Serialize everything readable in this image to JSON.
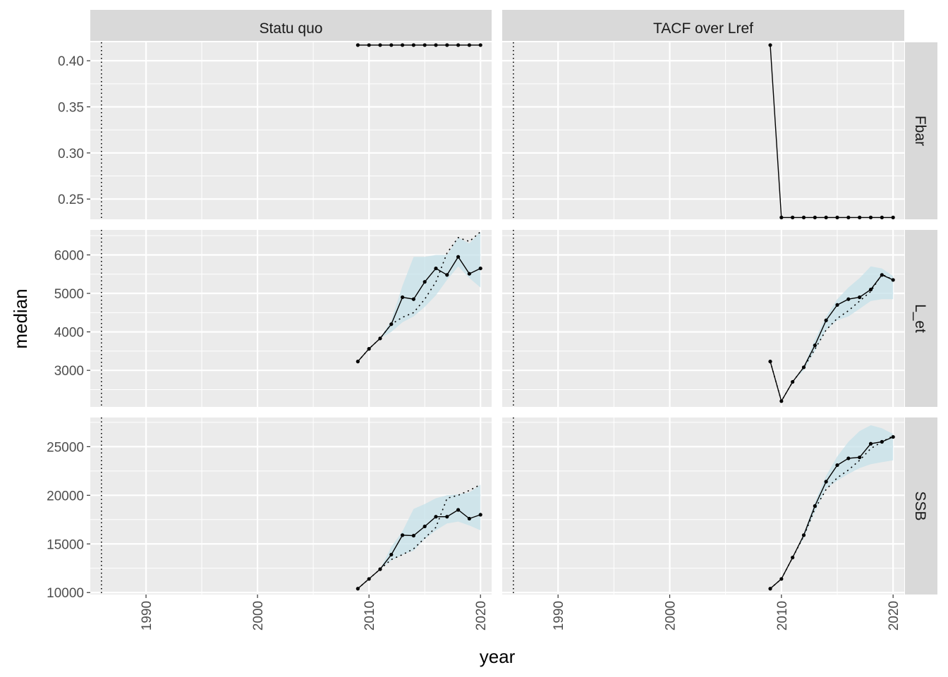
{
  "chart_data": {
    "type": "line",
    "xlabel": "year",
    "ylabel": "median",
    "x_ticks": [
      1990,
      2000,
      2010,
      2020
    ],
    "xlim": [
      1985,
      2021
    ],
    "reference_line_x": 1986,
    "columns": [
      "Statu quo",
      "TACF over Lref"
    ],
    "rows": [
      "Fbar",
      "L_et",
      "SSB"
    ],
    "years": [
      2009,
      2010,
      2011,
      2012,
      2013,
      2014,
      2015,
      2016,
      2017,
      2018,
      2019,
      2020
    ],
    "colors": {
      "panel_bg": "#ebebeb",
      "strip_bg": "#d9d9d9",
      "grid": "#ffffff",
      "line": "#000000",
      "ribbon": "#c6e2ea"
    },
    "panels": {
      "Fbar": {
        "ylim": [
          0.228,
          0.42
        ],
        "y_ticks": [
          0.25,
          0.3,
          0.35,
          0.4
        ],
        "y_tick_labels": [
          "0.25",
          "0.30",
          "0.35",
          "0.40"
        ],
        "Statu quo": {
          "median": [
            0.417,
            0.417,
            0.417,
            0.417,
            0.417,
            0.417,
            0.417,
            0.417,
            0.417,
            0.417,
            0.417,
            0.417
          ],
          "dotted": [],
          "ribbon_low": [],
          "ribbon_high": []
        },
        "TACF over Lref": {
          "median": [
            0.417,
            0.23,
            0.23,
            0.23,
            0.23,
            0.23,
            0.23,
            0.23,
            0.23,
            0.23,
            0.23,
            0.23
          ],
          "dotted": [],
          "ribbon_low": [],
          "ribbon_high": []
        }
      },
      "L_et": {
        "ylim": [
          2050,
          6650
        ],
        "y_ticks": [
          3000,
          4000,
          5000,
          6000
        ],
        "y_tick_labels": [
          "3000",
          "4000",
          "5000",
          "6000"
        ],
        "Statu quo": {
          "median": [
            3230,
            3560,
            3830,
            4200,
            4900,
            4850,
            5300,
            5650,
            5480,
            5950,
            5510,
            5650
          ],
          "dotted": [
            3230,
            3560,
            3830,
            4200,
            4380,
            4500,
            4850,
            5300,
            6050,
            6450,
            6350,
            6600
          ],
          "ribbon_low": [
            3230,
            3560,
            3830,
            4000,
            4250,
            4400,
            4650,
            4950,
            5350,
            5700,
            5400,
            5150
          ],
          "ribbon_high": [
            3230,
            3560,
            3830,
            4300,
            5200,
            5950,
            5950,
            6000,
            6000,
            6450,
            6300,
            6600
          ]
        },
        "TACF over Lref": {
          "median": [
            3230,
            2200,
            2700,
            3080,
            3650,
            4300,
            4700,
            4850,
            4900,
            5100,
            5480,
            5350
          ],
          "dotted": [
            3230,
            2200,
            2700,
            3080,
            3550,
            4050,
            4350,
            4550,
            4800,
            5050,
            5500,
            5350
          ],
          "ribbon_low": [
            3230,
            2200,
            2700,
            3000,
            3500,
            4050,
            4300,
            4400,
            4600,
            4800,
            4850,
            4850
          ],
          "ribbon_high": [
            3230,
            2200,
            2700,
            3100,
            3800,
            4400,
            4850,
            5150,
            5400,
            5700,
            5650,
            5450
          ]
        }
      },
      "SSB": {
        "ylim": [
          9800,
          28000
        ],
        "y_ticks": [
          10000,
          15000,
          20000,
          25000
        ],
        "y_tick_labels": [
          "10000",
          "15000",
          "20000",
          "25000"
        ],
        "Statu quo": {
          "median": [
            10400,
            11400,
            12400,
            13900,
            15900,
            15850,
            16800,
            17800,
            17800,
            18500,
            17600,
            18000
          ],
          "dotted": [
            10400,
            11400,
            12400,
            13400,
            13900,
            14500,
            15600,
            16700,
            19700,
            20000,
            20500,
            21100
          ],
          "ribbon_low": [
            10400,
            11400,
            12400,
            13300,
            13900,
            14300,
            15500,
            16400,
            17100,
            17300,
            16900,
            16400
          ],
          "ribbon_high": [
            10400,
            11400,
            12400,
            14700,
            16300,
            18600,
            19100,
            19700,
            20000,
            20100,
            20300,
            21100
          ]
        },
        "TACF over Lref": {
          "median": [
            10400,
            11400,
            13600,
            15900,
            18900,
            21400,
            23100,
            23800,
            23900,
            25300,
            25500,
            26000
          ],
          "dotted": [
            10400,
            11400,
            13600,
            15800,
            18600,
            20600,
            21800,
            22600,
            23600,
            24800,
            25500,
            26100
          ],
          "ribbon_low": [
            10400,
            11400,
            13600,
            15600,
            18300,
            20700,
            21500,
            22200,
            22800,
            23200,
            23400,
            23600
          ],
          "ribbon_high": [
            10400,
            11400,
            13600,
            16100,
            19300,
            22000,
            24000,
            25500,
            26600,
            27200,
            26900,
            26300
          ]
        }
      }
    }
  }
}
